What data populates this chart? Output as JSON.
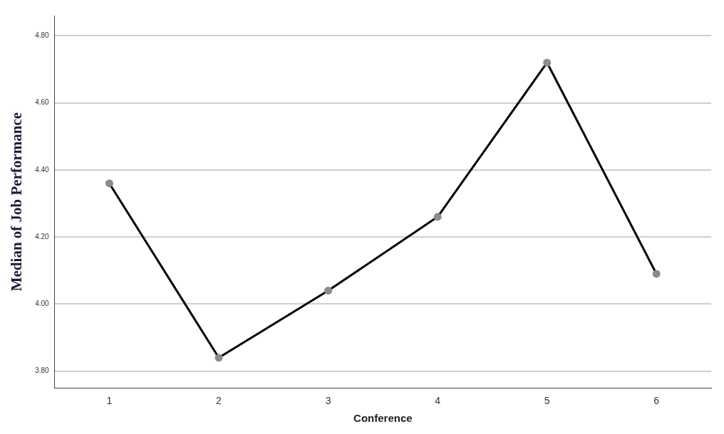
{
  "chart_data": {
    "type": "line",
    "xlabel": "Conference",
    "ylabel": "Median of Job Performance",
    "categories": [
      "1",
      "2",
      "3",
      "4",
      "5",
      "6"
    ],
    "series": [
      {
        "color": "#000000",
        "values": [
          4.36,
          3.84,
          4.04,
          4.26,
          4.72,
          4.09
        ]
      }
    ],
    "ylim": [
      3.75,
      4.86
    ],
    "yticks": [
      {
        "value": 3.8,
        "label": "3.80"
      },
      {
        "value": 4.0,
        "label": "4.00"
      },
      {
        "value": 4.2,
        "label": "4.20"
      },
      {
        "value": 4.4,
        "label": "4.40"
      },
      {
        "value": 4.6,
        "label": "4.60"
      },
      {
        "value": 4.8,
        "label": "4.80"
      }
    ],
    "grid": "y",
    "marker": "circle",
    "line_style": "solid",
    "legend": false
  }
}
